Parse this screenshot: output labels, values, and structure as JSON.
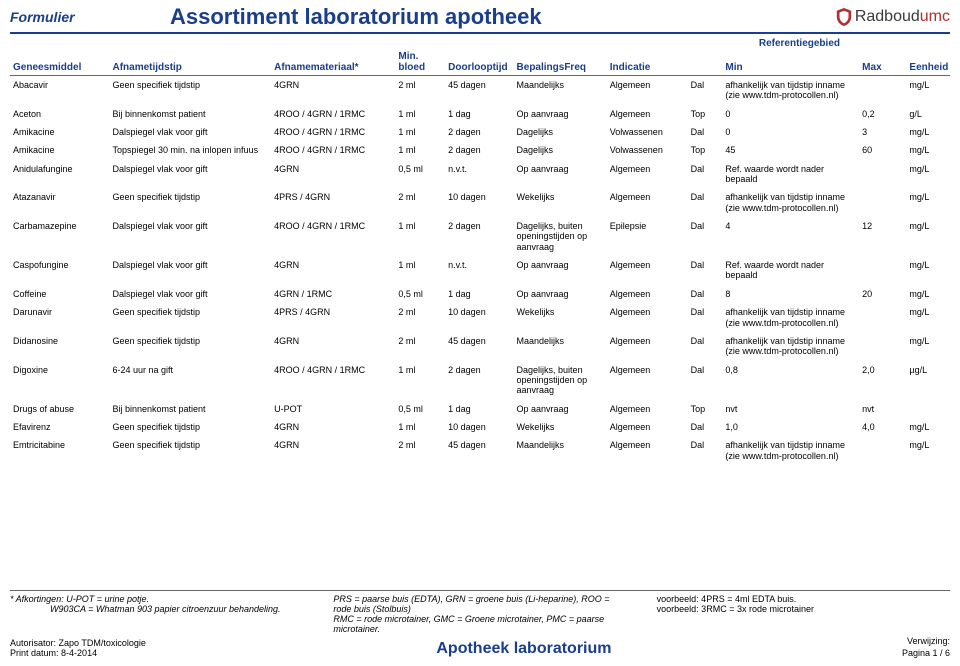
{
  "header": {
    "formulier": "Formulier",
    "title": "Assortiment laboratorium apotheek",
    "logo_text_a": "Radboud",
    "logo_text_b": "umc",
    "referentiegebied": "Referentiegebied"
  },
  "columns": {
    "geneesmiddel": "Geneesmiddel",
    "afnametijdstip": "Afnametijdstip",
    "afnamemateriaal": "Afnamemateriaal*",
    "minbloed": "Min. bloed",
    "doorlooptijd": "Doorlooptijd",
    "bepalingsfreq": "BepalingsFreq",
    "indicatie": "Indicatie",
    "ref_blank": "",
    "min": "Min",
    "max": "Max",
    "eenheid": "Eenheid"
  },
  "rows": [
    {
      "g": "Abacavir",
      "at": "Geen specifiek tijdstip",
      "am": "4GRN",
      "mb": "2 ml",
      "dl": "45 dagen",
      "bf": "Maandelijks",
      "ind": "Algemeen",
      "ref": "Dal",
      "min": "afhankelijk van tijdstip inname (zie www.tdm-protocollen.nl)",
      "max": "",
      "een": "mg/L"
    },
    {
      "g": "Aceton",
      "at": "Bij binnenkomst patient",
      "am": "4ROO / 4GRN / 1RMC",
      "mb": "1 ml",
      "dl": "1 dag",
      "bf": "Op aanvraag",
      "ind": "Algemeen",
      "ref": "Top",
      "min": "0",
      "max": "0,2",
      "een": "g/L"
    },
    {
      "g": "Amikacine",
      "at": "Dalspiegel vlak voor gift",
      "am": "4ROO / 4GRN / 1RMC",
      "mb": "1 ml",
      "dl": "2 dagen",
      "bf": "Dagelijks",
      "ind": "Volwassenen",
      "ref": "Dal",
      "min": "0",
      "max": "3",
      "een": "mg/L"
    },
    {
      "g": "Amikacine",
      "at": "Topspiegel 30 min. na inlopen infuus",
      "am": "4ROO / 4GRN / 1RMC",
      "mb": "1 ml",
      "dl": "2 dagen",
      "bf": "Dagelijks",
      "ind": "Volwassenen",
      "ref": "Top",
      "min": "45",
      "max": "60",
      "een": "mg/L"
    },
    {
      "g": "Anidulafungine",
      "at": "Dalspiegel vlak voor gift",
      "am": "4GRN",
      "mb": "0,5 ml",
      "dl": "n.v.t.",
      "bf": "Op aanvraag",
      "ind": "Algemeen",
      "ref": "Dal",
      "min": "Ref. waarde wordt nader bepaald",
      "max": "",
      "een": "mg/L"
    },
    {
      "g": "Atazanavir",
      "at": "Geen specifiek tijdstip",
      "am": "4PRS / 4GRN",
      "mb": "2 ml",
      "dl": "10 dagen",
      "bf": "Wekelijks",
      "ind": "Algemeen",
      "ref": "Dal",
      "min": "afhankelijk van tijdstip inname (zie www.tdm-protocollen.nl)",
      "max": "",
      "een": "mg/L"
    },
    {
      "g": "Carbamazepine",
      "at": "Dalspiegel vlak voor gift",
      "am": "4ROO / 4GRN / 1RMC",
      "mb": "1 ml",
      "dl": "2 dagen",
      "bf": "Dagelijks, buiten openingstijden op aanvraag",
      "ind": "Epilepsie",
      "ref": "Dal",
      "min": "4",
      "max": "12",
      "een": "mg/L"
    },
    {
      "g": "Caspofungine",
      "at": "Dalspiegel vlak voor gift",
      "am": "4GRN",
      "mb": "1 ml",
      "dl": "n.v.t.",
      "bf": "Op aanvraag",
      "ind": "Algemeen",
      "ref": "Dal",
      "min": "Ref. waarde wordt nader bepaald",
      "max": "",
      "een": "mg/L"
    },
    {
      "g": "Coffeine",
      "at": "Dalspiegel vlak voor gift",
      "am": "4GRN / 1RMC",
      "mb": "0,5 ml",
      "dl": "1 dag",
      "bf": "Op aanvraag",
      "ind": "Algemeen",
      "ref": "Dal",
      "min": "8",
      "max": "20",
      "een": "mg/L"
    },
    {
      "g": "Darunavir",
      "at": "Geen specifiek tijdstip",
      "am": "4PRS / 4GRN",
      "mb": "2 ml",
      "dl": "10 dagen",
      "bf": "Wekelijks",
      "ind": "Algemeen",
      "ref": "Dal",
      "min": "afhankelijk van tijdstip inname (zie www.tdm-protocollen.nl)",
      "max": "",
      "een": "mg/L"
    },
    {
      "g": "Didanosine",
      "at": "Geen specifiek tijdstip",
      "am": "4GRN",
      "mb": "2 ml",
      "dl": "45 dagen",
      "bf": "Maandelijks",
      "ind": "Algemeen",
      "ref": "Dal",
      "min": "afhankelijk van tijdstip inname (zie www.tdm-protocollen.nl)",
      "max": "",
      "een": "mg/L"
    },
    {
      "g": "Digoxine",
      "at": "6-24 uur na gift",
      "am": "4ROO / 4GRN / 1RMC",
      "mb": "1 ml",
      "dl": "2 dagen",
      "bf": "Dagelijks, buiten openingstijden op aanvraag",
      "ind": "Algemeen",
      "ref": "Dal",
      "min": "0,8",
      "max": "2,0",
      "een": "µg/L"
    },
    {
      "g": "Drugs of abuse",
      "at": "Bij binnenkomst patient",
      "am": "U-POT",
      "mb": "0,5 ml",
      "dl": "1 dag",
      "bf": "Op aanvraag",
      "ind": "Algemeen",
      "ref": "Top",
      "min": "nvt",
      "max": "nvt",
      "een": ""
    },
    {
      "g": "Efavirenz",
      "at": "Geen specifiek tijdstip",
      "am": "4GRN",
      "mb": "1 ml",
      "dl": "10 dagen",
      "bf": "Wekelijks",
      "ind": "Algemeen",
      "ref": "Dal",
      "min": "1,0",
      "max": "4,0",
      "een": "mg/L"
    },
    {
      "g": "Emtricitabine",
      "at": "Geen specifiek tijdstip",
      "am": "4GRN",
      "mb": "2 ml",
      "dl": "45 dagen",
      "bf": "Maandelijks",
      "ind": "Algemeen",
      "ref": "Dal",
      "min": "afhankelijk van tijdstip inname (zie www.tdm-protocollen.nl)",
      "max": "",
      "een": "mg/L"
    }
  ],
  "footer": {
    "afk1": "* Afkortingen: U-POT = urine potje.",
    "afk2": "W903CA = Whatman 903 papier citroenzuur behandeling.",
    "prs": "PRS = paarse buis (EDTA), GRN = groene buis (Li-heparine), ROO = rode buis (Stolbuis)",
    "rmc": "RMC = rode microtainer, GMC = Groene microtainer, PMC = paarse microtainer.",
    "vb1": "voorbeeld: 4PRS = 4ml EDTA buis.",
    "vb2": "voorbeeld: 3RMC = 3x rode microtainer",
    "autorisator_label": "Autorisator:",
    "autorisator": "Zapo TDM/toxicologie",
    "printdatum_label": "Print datum:",
    "printdatum": "8-4-2014",
    "lab": "Apotheek laboratorium",
    "verwijzing": "Verwijzing:",
    "pagina": "Pagina 1 / 6"
  }
}
